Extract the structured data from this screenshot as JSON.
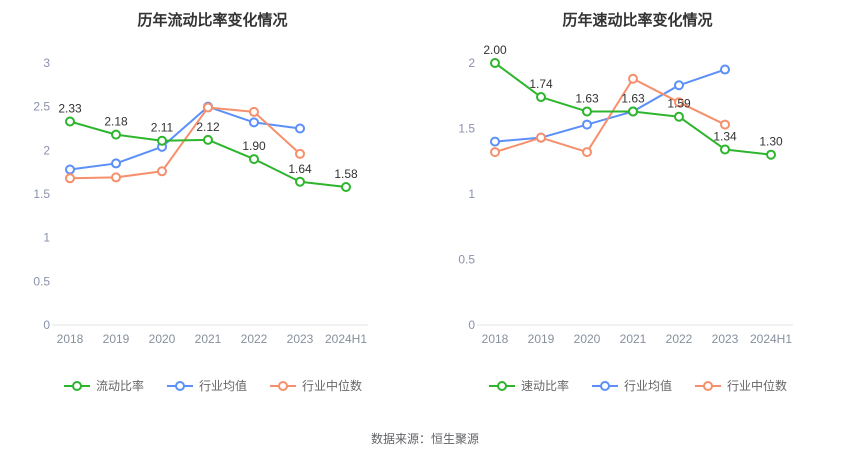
{
  "source_note": "数据来源：恒生聚源",
  "chart_data": [
    {
      "type": "line",
      "title": "历年流动比率变化情况",
      "categories": [
        "2018",
        "2019",
        "2020",
        "2021",
        "2022",
        "2023",
        "2024H1"
      ],
      "ylim": [
        0,
        3
      ],
      "ytick_step": 0.5,
      "grid": false,
      "legend_position": "bottom",
      "series": [
        {
          "name": "流动比率",
          "color": "#2db52d",
          "values": [
            2.33,
            2.18,
            2.11,
            2.12,
            1.9,
            1.64,
            1.58
          ],
          "labels": [
            "2.33",
            "2.18",
            "2.11",
            "2.12",
            "1.90",
            "1.64",
            "1.58"
          ]
        },
        {
          "name": "行业均值",
          "color": "#5b8ff9",
          "values": [
            1.78,
            1.85,
            2.04,
            2.5,
            2.32,
            2.25
          ]
        },
        {
          "name": "行业中位数",
          "color": "#f58f6c",
          "values": [
            1.68,
            1.69,
            1.76,
            2.49,
            2.44,
            1.96
          ]
        }
      ]
    },
    {
      "type": "line",
      "title": "历年速动比率变化情况",
      "categories": [
        "2018",
        "2019",
        "2020",
        "2021",
        "2022",
        "2023",
        "2024H1"
      ],
      "ylim": [
        0,
        2
      ],
      "ytick_step": 0.5,
      "grid": false,
      "legend_position": "bottom",
      "series": [
        {
          "name": "速动比率",
          "color": "#2db52d",
          "values": [
            2.0,
            1.74,
            1.63,
            1.63,
            1.59,
            1.34,
            1.3
          ],
          "labels": [
            "2.00",
            "1.74",
            "1.63",
            "1.63",
            "1.59",
            "1.34",
            "1.30"
          ]
        },
        {
          "name": "行业均值",
          "color": "#5b8ff9",
          "values": [
            1.4,
            1.43,
            1.53,
            1.63,
            1.83,
            1.95
          ]
        },
        {
          "name": "行业中位数",
          "color": "#f58f6c",
          "values": [
            1.32,
            1.43,
            1.32,
            1.88,
            1.7,
            1.53
          ]
        }
      ]
    }
  ]
}
